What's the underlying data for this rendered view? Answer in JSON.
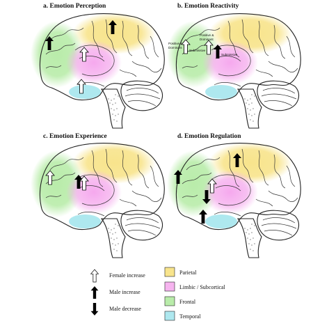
{
  "panels": [
    {
      "title": "a. Emotion Perception"
    },
    {
      "title": "b. Emotion Reactivity",
      "annotations": [
        "Positive &",
        "Dominant",
        "Positive &",
        "Dominant",
        "Submissive",
        "Submissive"
      ]
    },
    {
      "title": "c. Emotion Experience"
    },
    {
      "title": "d. Emotion Regulation"
    }
  ],
  "legend": {
    "arrows": [
      {
        "label": "Female increase",
        "icon": "white-up-arrow"
      },
      {
        "label": "Male increase",
        "icon": "black-up-arrow"
      },
      {
        "label": "Male decrease",
        "icon": "black-down-arrow"
      }
    ],
    "regions": [
      {
        "label": "Parietal",
        "color": "#f8e48c"
      },
      {
        "label": "Limbic / Subcortical",
        "color": "#f6b4ef"
      },
      {
        "label": "Frontal",
        "color": "#b9ecaa"
      },
      {
        "label": "Temporal",
        "color": "#aee8ef"
      }
    ]
  }
}
